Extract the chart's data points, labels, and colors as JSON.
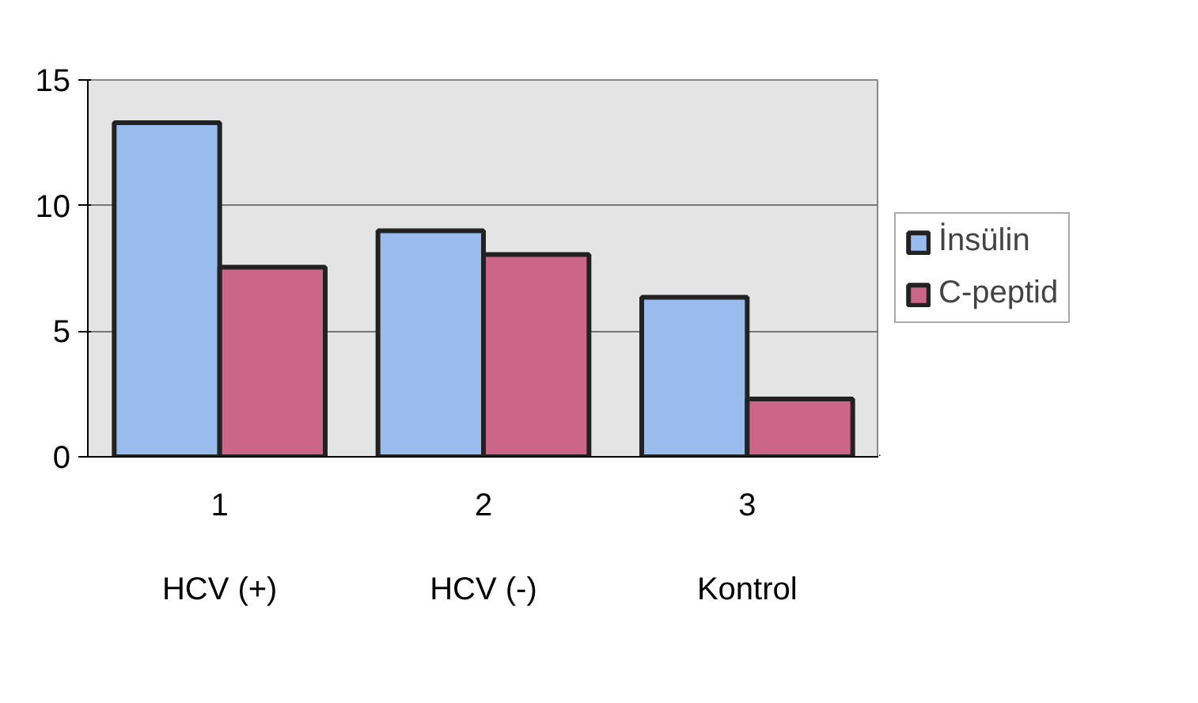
{
  "chart_data": {
    "type": "bar",
    "categories": [
      "1\n\nHCV (+)",
      "2\n\nHCV (-)",
      "3\n\nKontrol"
    ],
    "series": [
      {
        "name": "İnsülin",
        "color": "#99bbee",
        "values": [
          13.3,
          9.0,
          6.35
        ]
      },
      {
        "name": "C-peptid",
        "color": "#cc6688",
        "values": [
          7.55,
          8.05,
          2.3
        ]
      }
    ],
    "ylim": [
      0,
      15
    ],
    "yticks": [
      0,
      5,
      10,
      15
    ],
    "grid": "y",
    "legend": "right"
  }
}
